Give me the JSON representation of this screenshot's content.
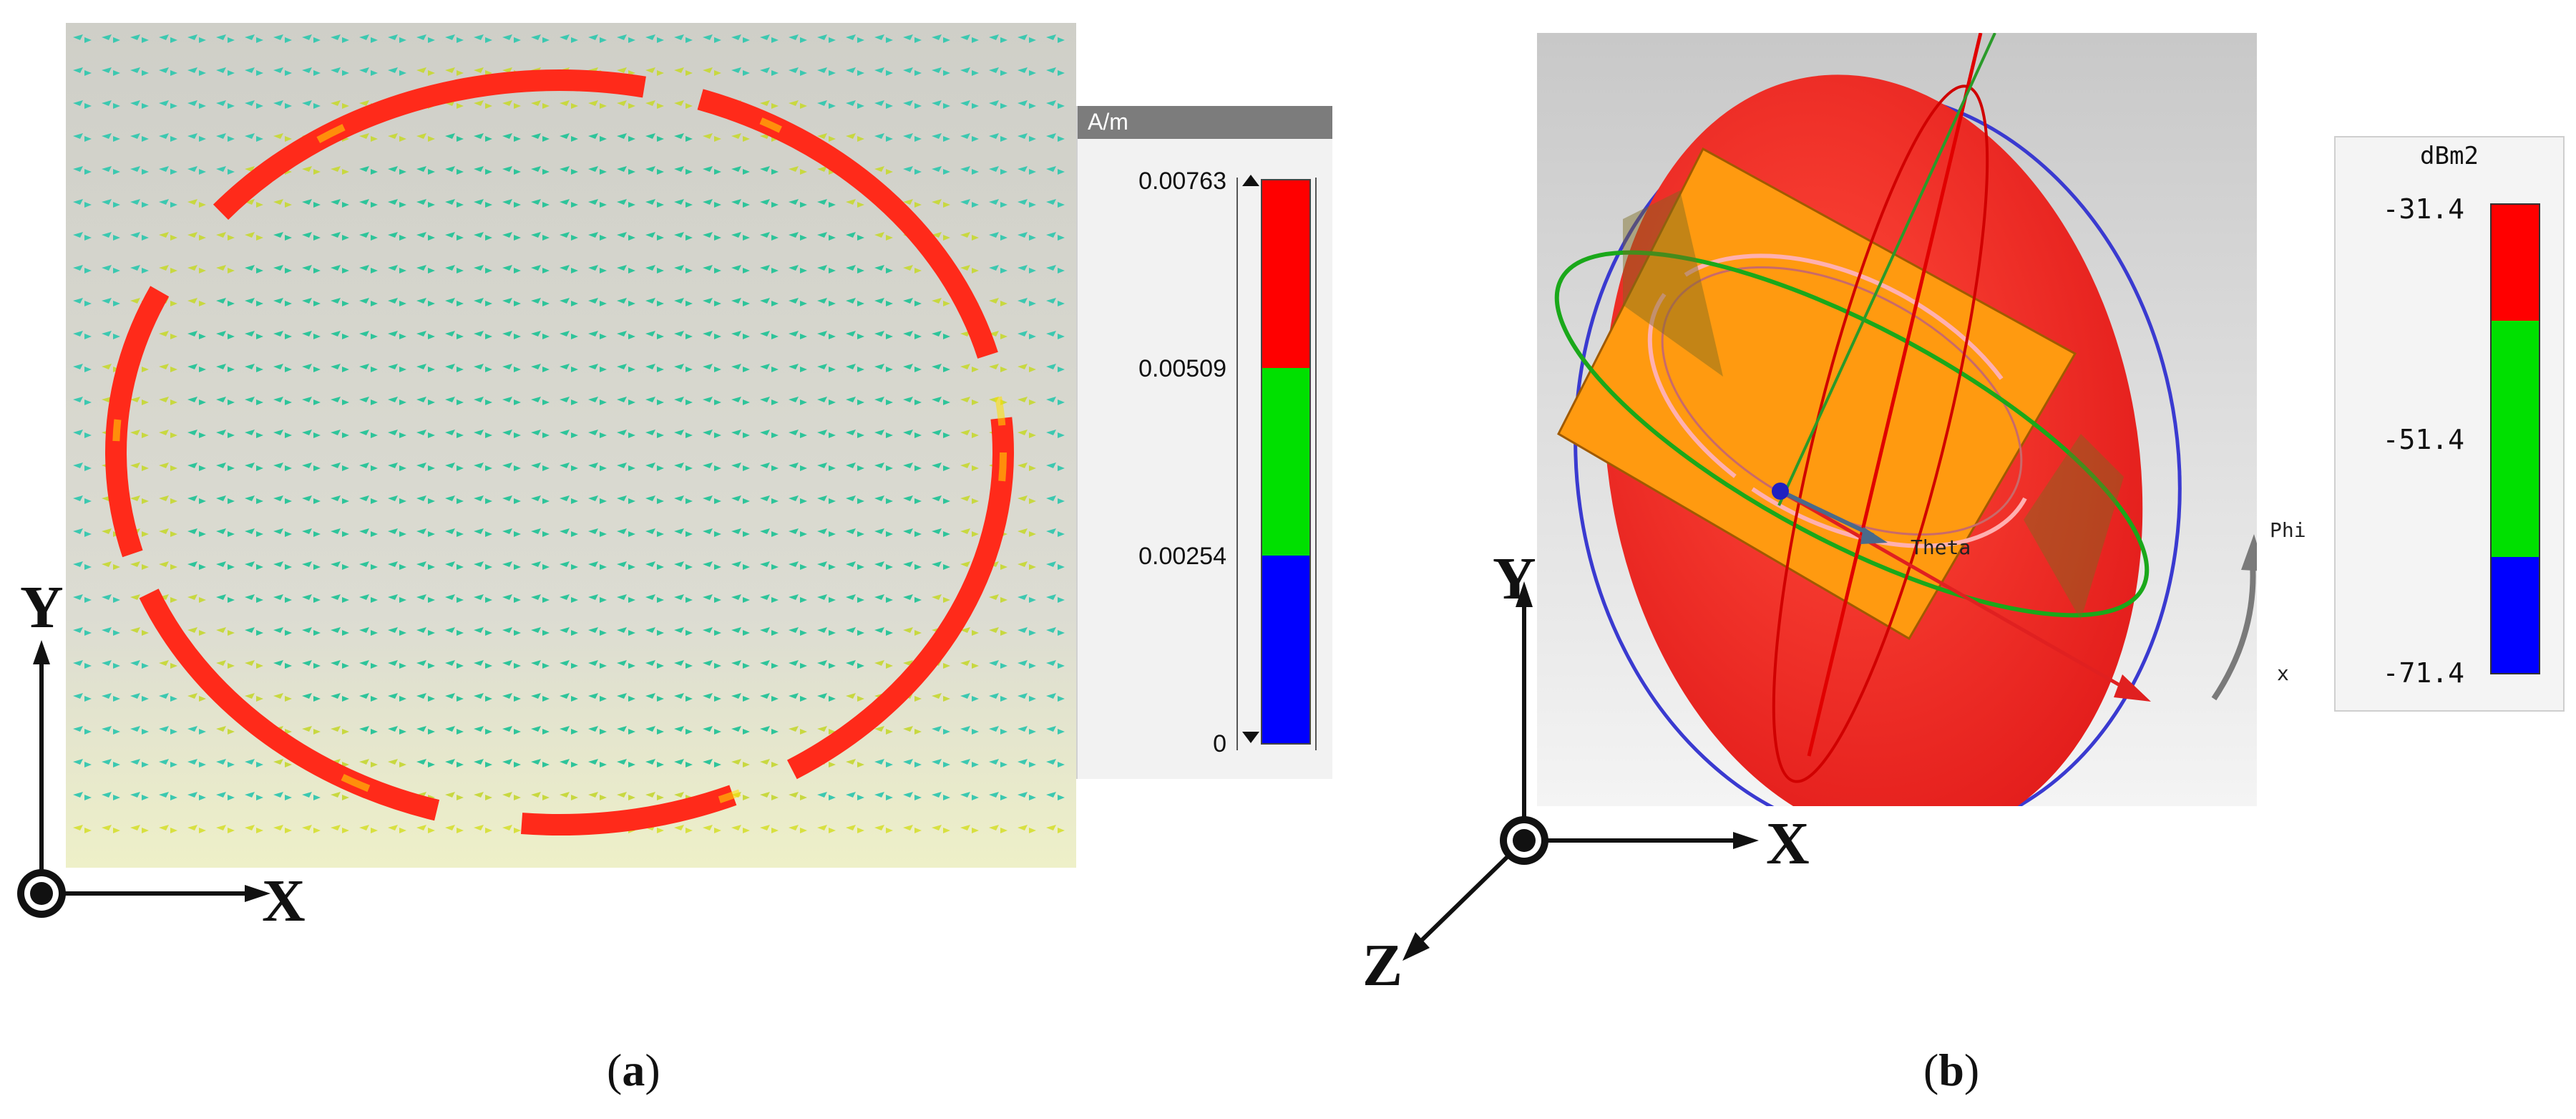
{
  "panel_a": {
    "legend": {
      "unit": "A/m",
      "ticks": [
        "0.00763",
        "0.00509",
        "0.00254",
        "0"
      ]
    },
    "axes": {
      "y": "Y",
      "x": "X"
    },
    "caption": {
      "open": "(",
      "letter": "a",
      "close": ")"
    }
  },
  "panel_b": {
    "legend": {
      "unit": "dBm2",
      "ticks": [
        "-31.4",
        "-51.4",
        "-71.4"
      ]
    },
    "view_labels": {
      "theta": "Theta",
      "phi": "Phi",
      "x": "x"
    },
    "axes": {
      "y": "Y",
      "x": "X",
      "z": "Z"
    },
    "caption": {
      "open": "(",
      "letter": "b",
      "close": ")"
    }
  },
  "colors": {
    "high": "#ff0000",
    "mid": "#00e000",
    "low": "#0000ff",
    "patch": "#ff9900",
    "body": "#ee2020"
  }
}
